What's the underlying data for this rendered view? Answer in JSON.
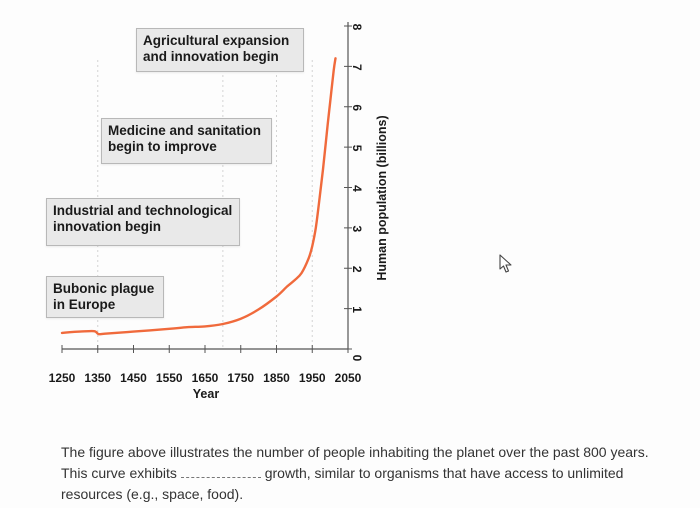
{
  "chart_data": {
    "type": "line",
    "title": "",
    "xlabel": "Year",
    "ylabel": "Human population (billions)",
    "x_ticks": [
      1250,
      1350,
      1450,
      1550,
      1650,
      1750,
      1850,
      1950,
      2050
    ],
    "y_ticks": [
      0,
      1,
      2,
      3,
      4,
      5,
      6,
      7,
      8
    ],
    "xlim": [
      1250,
      2050
    ],
    "ylim": [
      0,
      8
    ],
    "y_axis_position": "right",
    "line_color": "#f06a3c",
    "series": [
      {
        "x": [
          1250,
          1300,
          1340,
          1352,
          1370,
          1450,
          1550,
          1600,
          1650,
          1700,
          1750,
          1800,
          1850,
          1880,
          1900,
          1920,
          1940,
          1950,
          1960,
          1970,
          1980,
          1990,
          2000,
          2010,
          2015
        ],
        "y": [
          0.4,
          0.43,
          0.44,
          0.37,
          0.38,
          0.43,
          0.5,
          0.54,
          0.56,
          0.62,
          0.75,
          0.98,
          1.3,
          1.55,
          1.7,
          1.88,
          2.25,
          2.55,
          3.0,
          3.7,
          4.45,
          5.3,
          6.1,
          6.9,
          7.2
        ]
      }
    ],
    "annotations": [
      {
        "text": "Agricultural expansion\nand innovation begin"
      },
      {
        "text": "Medicine and sanitation\nbegin to improve"
      },
      {
        "text": "Industrial and technological\ninnovation begin"
      },
      {
        "text": "Bubonic plague\nin Europe"
      }
    ]
  },
  "caption": {
    "part1": "The figure above illustrates the number of people inhabiting the planet over the past 800 years. This curve exhibits ",
    "part2": " growth, similar to organisms that have access to unlimited resources (e.g., space, food)."
  },
  "icons": {
    "cursor": "mouse-pointer-icon"
  }
}
